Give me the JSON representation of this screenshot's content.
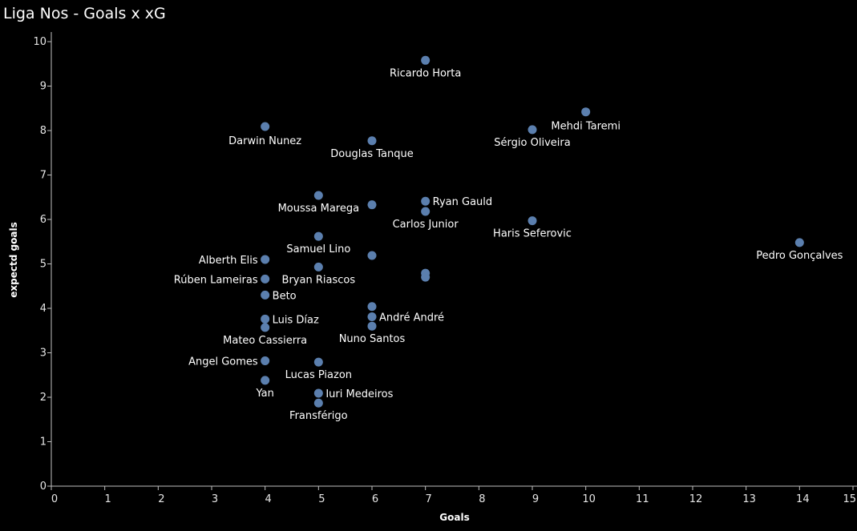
{
  "title": "Liga Nos - Goals x xG",
  "chart_data": {
    "type": "scatter",
    "title": "Liga Nos - Goals x xG",
    "xlabel": "Goals",
    "ylabel": "expectd goals",
    "xlim": [
      0,
      15
    ],
    "ylim": [
      0,
      10
    ],
    "xticks": [
      "0",
      "1",
      "2",
      "3",
      "4",
      "5",
      "6",
      "7",
      "8",
      "9",
      "10",
      "11",
      "12",
      "13",
      "14",
      "15"
    ],
    "yticks": [
      "0",
      "1",
      "2",
      "3",
      "4",
      "5",
      "6",
      "7",
      "8",
      "9",
      "10"
    ],
    "grid": false,
    "marker_color": "#5b7fae",
    "points": [
      {
        "x": 7,
        "y": 9.58,
        "label": "Ricardo Horta",
        "pos": "below"
      },
      {
        "x": 10,
        "y": 8.42,
        "label": "Mehdi Taremi",
        "pos": "below-right"
      },
      {
        "x": 4,
        "y": 8.09,
        "label": "Darwin Nunez",
        "pos": "below-left"
      },
      {
        "x": 9,
        "y": 8.02,
        "label": "Sérgio Oliveira",
        "pos": "below"
      },
      {
        "x": 6,
        "y": 7.77,
        "label": "Douglas Tanque",
        "pos": "below"
      },
      {
        "x": 5,
        "y": 6.54,
        "label": "Moussa Marega",
        "pos": "below"
      },
      {
        "x": 7,
        "y": 6.41,
        "label": "Ryan Gauld",
        "pos": "right"
      },
      {
        "x": 6,
        "y": 6.33,
        "label": "",
        "pos": "none"
      },
      {
        "x": 7,
        "y": 6.18,
        "label": "Carlos Junior",
        "pos": "below"
      },
      {
        "x": 9,
        "y": 5.97,
        "label": "Haris Seferovic",
        "pos": "below"
      },
      {
        "x": 5,
        "y": 5.62,
        "label": "Samuel Lino",
        "pos": "below"
      },
      {
        "x": 14,
        "y": 5.48,
        "label": "Pedro Gonçalves",
        "pos": "below"
      },
      {
        "x": 6,
        "y": 5.19,
        "label": "",
        "pos": "none"
      },
      {
        "x": 4,
        "y": 5.1,
        "label": "Alberth Elis",
        "pos": "left"
      },
      {
        "x": 5,
        "y": 4.93,
        "label": "Bryan Riascos",
        "pos": "below"
      },
      {
        "x": 7,
        "y": 4.79,
        "label": "",
        "pos": "none"
      },
      {
        "x": 7,
        "y": 4.7,
        "label": "",
        "pos": "none"
      },
      {
        "x": 4,
        "y": 4.66,
        "label": "Rúben Lameiras",
        "pos": "left"
      },
      {
        "x": 4,
        "y": 4.3,
        "label": "Beto",
        "pos": "right"
      },
      {
        "x": 6,
        "y": 4.04,
        "label": "",
        "pos": "none"
      },
      {
        "x": 6,
        "y": 3.81,
        "label": "André André",
        "pos": "right"
      },
      {
        "x": 4,
        "y": 3.76,
        "label": "Luis Díaz",
        "pos": "right"
      },
      {
        "x": 6,
        "y": 3.6,
        "label": "Nuno Santos",
        "pos": "below"
      },
      {
        "x": 4,
        "y": 3.57,
        "label": "Mateo Cassierra",
        "pos": "below"
      },
      {
        "x": 4,
        "y": 2.82,
        "label": "Angel Gomes",
        "pos": "left"
      },
      {
        "x": 5,
        "y": 2.79,
        "label": "Lucas Piazon",
        "pos": "below"
      },
      {
        "x": 4,
        "y": 2.38,
        "label": "Yan",
        "pos": "below"
      },
      {
        "x": 5,
        "y": 2.09,
        "label": "Iuri Medeiros",
        "pos": "right"
      },
      {
        "x": 5,
        "y": 1.87,
        "label": "Fransférigo",
        "pos": "below"
      }
    ]
  }
}
